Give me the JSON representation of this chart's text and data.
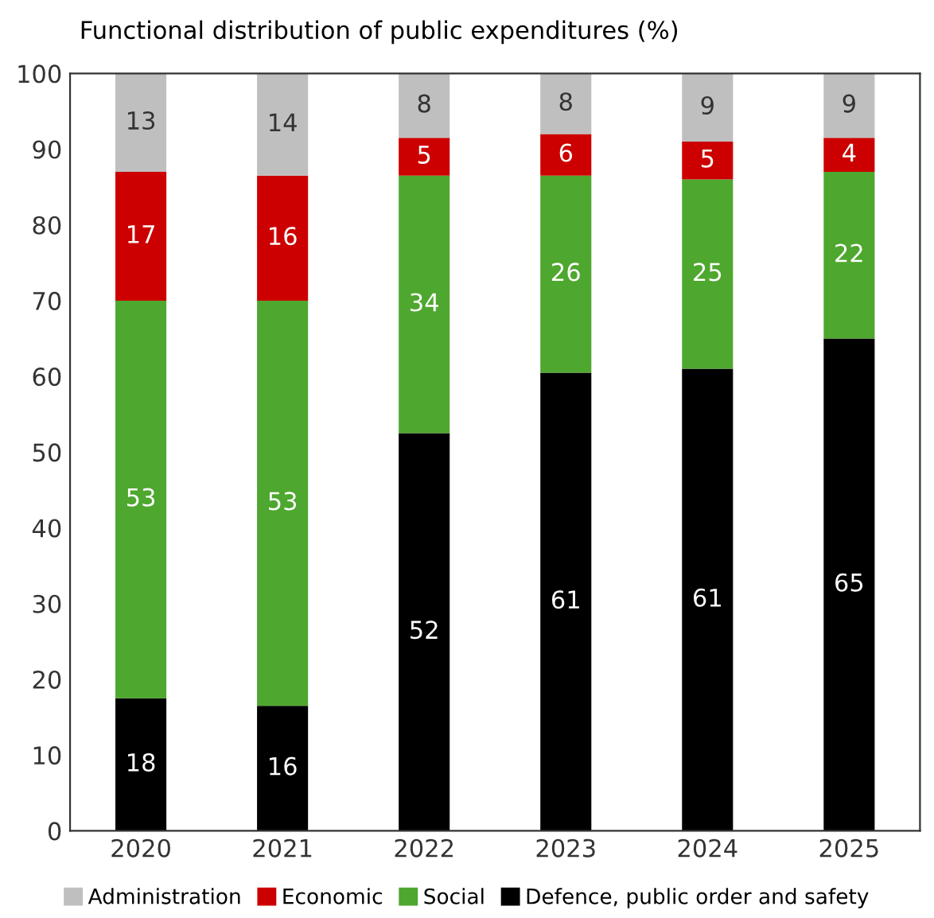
{
  "chart_data": {
    "type": "bar",
    "stacked": true,
    "title": "Functional distribution of public expenditures (%)",
    "categories": [
      "2020",
      "2021",
      "2022",
      "2023",
      "2024",
      "2025"
    ],
    "series": [
      {
        "name": "Defence, public order and safety",
        "color": "#000000",
        "values": [
          17.5,
          16.5,
          52.5,
          60.5,
          61,
          65
        ],
        "value_labels": [
          "18",
          "16",
          "52",
          "61",
          "61",
          "65"
        ]
      },
      {
        "name": "Social",
        "color": "#4ea72e",
        "values": [
          52.5,
          53.5,
          34,
          26,
          25,
          22
        ],
        "value_labels": [
          "53",
          "53",
          "34",
          "26",
          "25",
          "22"
        ]
      },
      {
        "name": "Economic",
        "color": "#cc0000",
        "values": [
          17,
          16.5,
          5,
          5.5,
          5,
          4.5
        ],
        "value_labels": [
          "17",
          "16",
          "5",
          "6",
          "5",
          "4"
        ]
      },
      {
        "name": "Administration",
        "color": "#bfbfbf",
        "values": [
          13,
          13.5,
          8.5,
          8,
          9,
          8.5
        ],
        "value_labels": [
          "13",
          "14",
          "8",
          "8",
          "9",
          "9"
        ]
      }
    ],
    "ylim": [
      0,
      100
    ],
    "yticks": [
      0,
      10,
      20,
      30,
      40,
      50,
      60,
      70,
      80,
      90,
      100
    ],
    "legend": "bottom",
    "grid": false
  }
}
